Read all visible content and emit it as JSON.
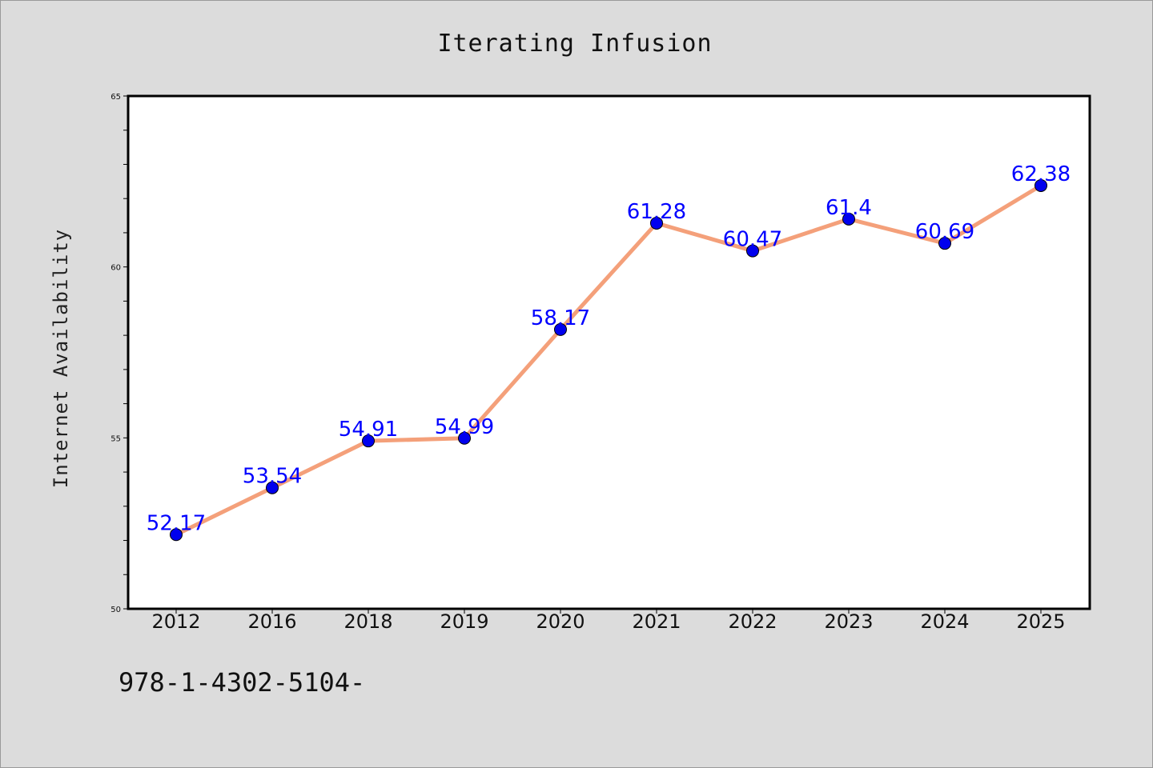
{
  "chart_data": {
    "type": "line",
    "title": "Iterating Infusion",
    "xlabel": "",
    "ylabel": "Internet Availability",
    "categories": [
      "2012",
      "2016",
      "2018",
      "2019",
      "2020",
      "2021",
      "2022",
      "2023",
      "2024",
      "2025"
    ],
    "values": [
      52.17,
      53.54,
      54.91,
      54.99,
      58.17,
      61.28,
      60.47,
      61.4,
      60.69,
      62.38
    ],
    "data_labels": [
      "52.17",
      "53.54",
      "54.91",
      "54.99",
      "58.17",
      "61.28",
      "60.47",
      "61.4",
      "60.69",
      "62.38"
    ],
    "ylim": [
      50,
      65
    ],
    "yticks": [
      50,
      55,
      60,
      65
    ],
    "yminor_step": 1,
    "grid": false,
    "legend": "none",
    "line_color": "#f4a07a",
    "marker_color": "#0000ee",
    "label_color": "#0000ff",
    "background": "#dcdcdc",
    "plot_background": "#ffffff"
  },
  "footnote": "978-1-4302-5104-"
}
